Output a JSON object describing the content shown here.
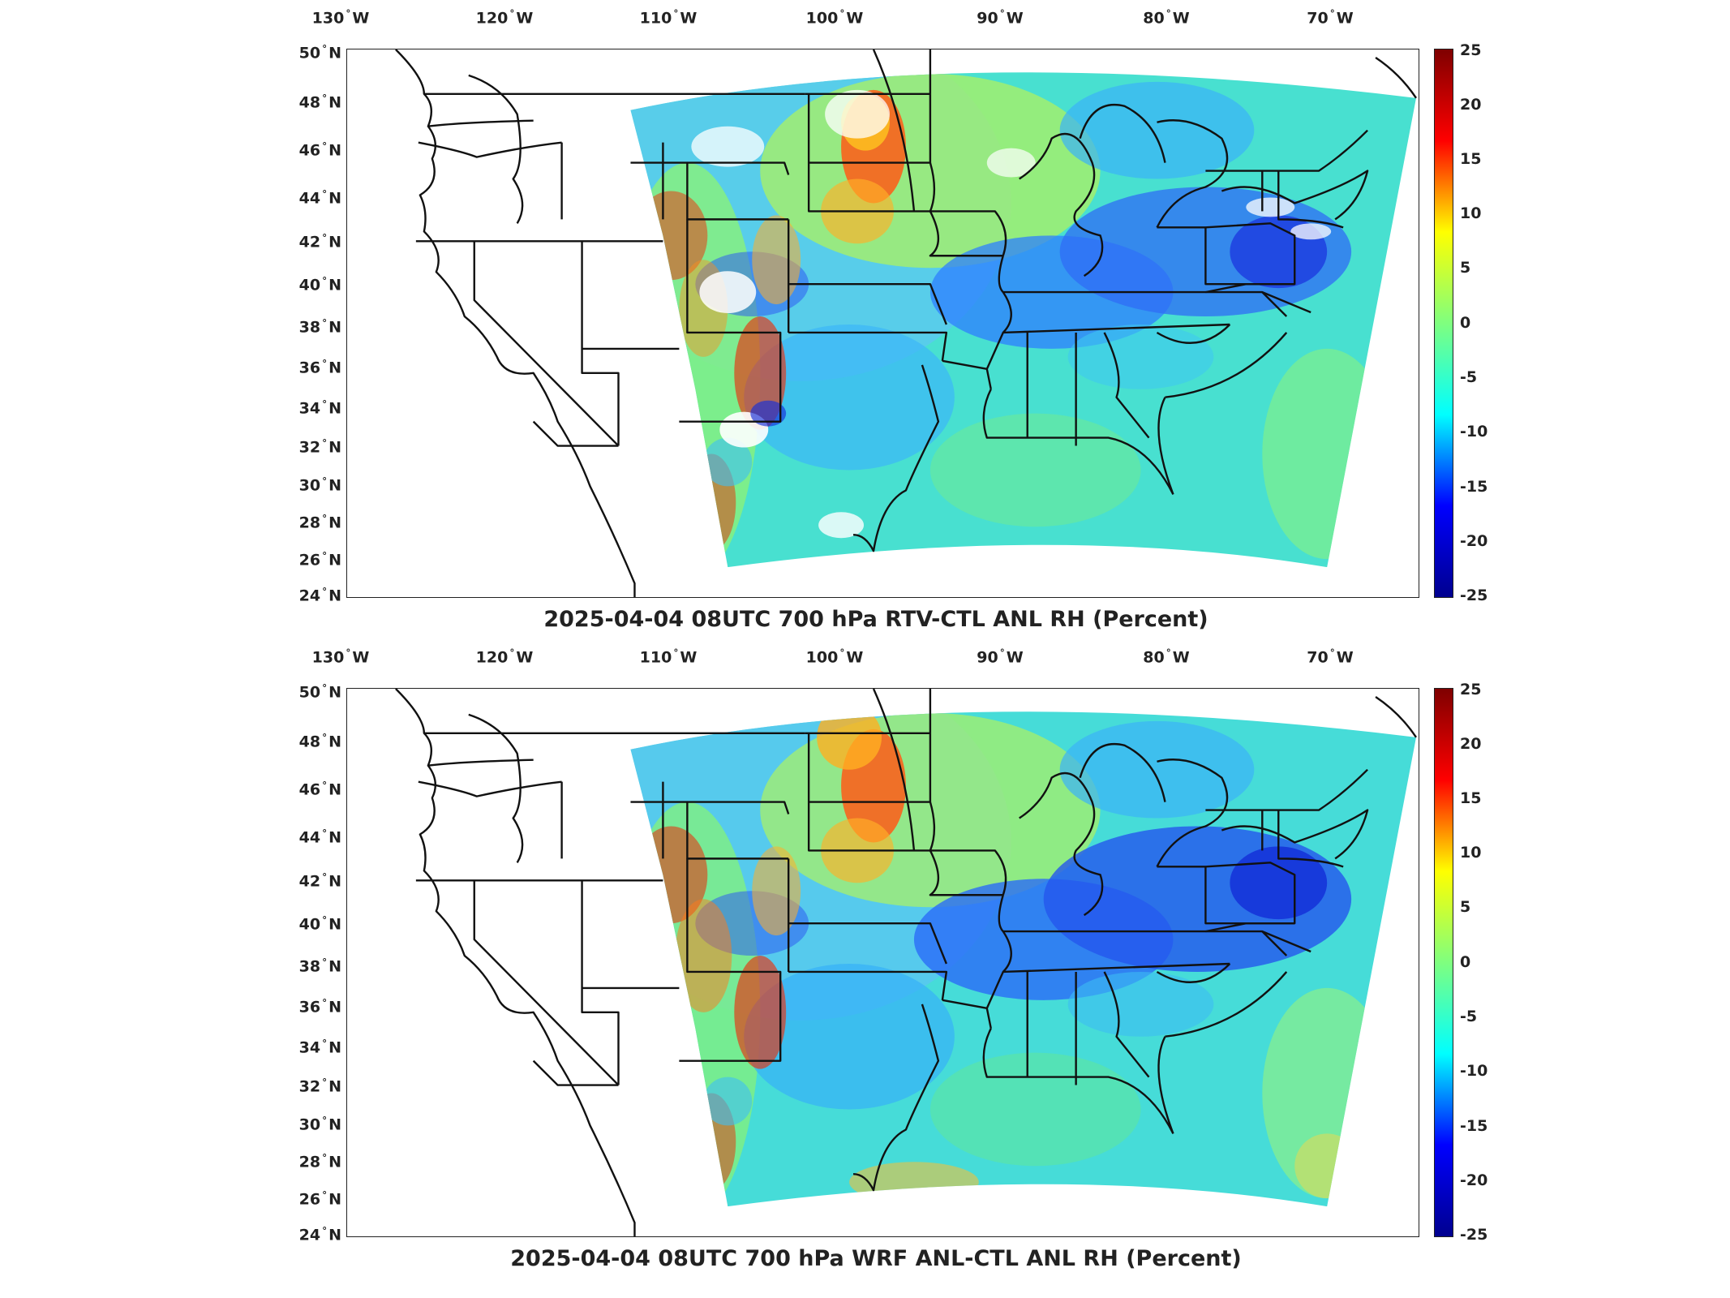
{
  "panels": [
    {
      "title": "2025-04-04 08UTC 700 hPa RTV-CTL ANL RH (Percent)"
    },
    {
      "title": "2025-04-04 08UTC 700 hPa WRF ANL-CTL ANL RH (Percent)"
    }
  ],
  "lon_labels": [
    "130",
    "120",
    "110",
    "100",
    "90",
    "80",
    "70"
  ],
  "lon_hemisphere": "W",
  "lat_labels": [
    "50",
    "48",
    "46",
    "44",
    "42",
    "40",
    "38",
    "36",
    "34",
    "32",
    "30",
    "28",
    "26",
    "24"
  ],
  "lat_hemisphere": "N",
  "colorbar": {
    "ticks": [
      "25",
      "20",
      "15",
      "10",
      "5",
      "0",
      "-5",
      "-10",
      "-15",
      "-20",
      "-25"
    ],
    "colormap": "jet",
    "colors": [
      "#00008f",
      "#0000ff",
      "#00ffff",
      "#7fff7f",
      "#ffff00",
      "#ff0000",
      "#7f0000"
    ]
  }
}
